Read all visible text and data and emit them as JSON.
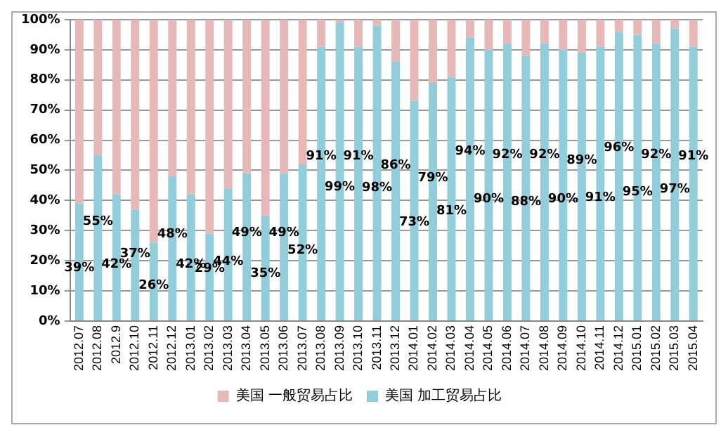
{
  "chart_data": {
    "type": "bar",
    "stacked": true,
    "categories": [
      "2012.07",
      "2012.08",
      "2012.9",
      "2012.10",
      "2012.11",
      "2012.12",
      "2013.01",
      "2013.02",
      "2013.03",
      "2013.04",
      "2013.05",
      "2013.06",
      "2013.07",
      "2013.08",
      "2013.09",
      "2013.10",
      "2013.11",
      "2013.12",
      "2014.01",
      "2014.02",
      "2014.03",
      "2014.04",
      "2014.05",
      "2014.06",
      "2014.07",
      "2014.08",
      "2014.09",
      "2014.10",
      "2014.11",
      "2014.12",
      "2015.01",
      "2015.02",
      "2015.03",
      "2015.04"
    ],
    "series": [
      {
        "name": "美国 加工贸易占比",
        "color": "#92cddc",
        "values": [
          39,
          55,
          42,
          37,
          26,
          48,
          42,
          29,
          44,
          49,
          35,
          49,
          52,
          91,
          99,
          91,
          98,
          86,
          73,
          79,
          81,
          94,
          90,
          92,
          88,
          92,
          90,
          89,
          91,
          96,
          95,
          92,
          97,
          91
        ],
        "value_labels": [
          "39%",
          "55%",
          "42%",
          "37%",
          "26%",
          "48%",
          "42%",
          "29%",
          "44%",
          "49%",
          "35%",
          "49%",
          "52%",
          "91%",
          "99%",
          "91%",
          "98%",
          "86%",
          "73%",
          "79%",
          "81%",
          "94%",
          "90%",
          "92%",
          "88%",
          "92%",
          "90%",
          "89%",
          "91%",
          "96%",
          "95%",
          "92%",
          "97%",
          "91%"
        ]
      },
      {
        "name": "美国 一般贸易占比",
        "color": "#e6b9b8",
        "values": [
          61,
          45,
          58,
          63,
          74,
          52,
          58,
          71,
          56,
          51,
          65,
          51,
          48,
          9,
          1,
          9,
          2,
          14,
          27,
          21,
          19,
          6,
          10,
          8,
          12,
          8,
          10,
          11,
          9,
          4,
          5,
          8,
          3,
          9
        ]
      }
    ],
    "ylim": [
      0,
      100
    ],
    "yticks": [
      {
        "value": 0,
        "label": "0%"
      },
      {
        "value": 10,
        "label": "10%"
      },
      {
        "value": 20,
        "label": "20%"
      },
      {
        "value": 30,
        "label": "30%"
      },
      {
        "value": 40,
        "label": "40%"
      },
      {
        "value": 50,
        "label": "50%"
      },
      {
        "value": 60,
        "label": "60%"
      },
      {
        "value": 70,
        "label": "70%"
      },
      {
        "value": 80,
        "label": "80%"
      },
      {
        "value": 90,
        "label": "90%"
      },
      {
        "value": 100,
        "label": "100%"
      }
    ],
    "grid": "y",
    "legend": "bottom"
  }
}
